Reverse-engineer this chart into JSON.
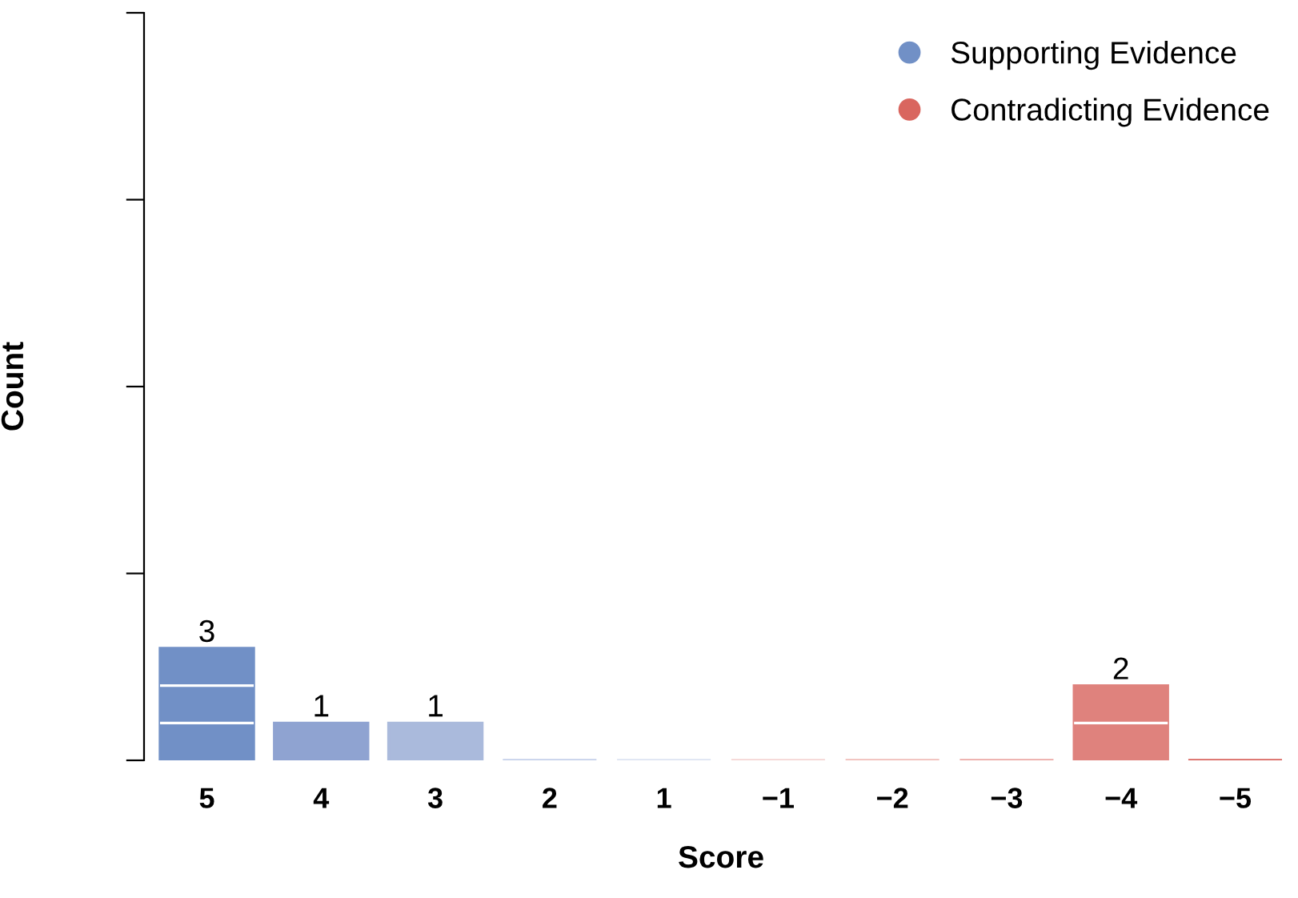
{
  "chart_data": {
    "type": "bar",
    "xlabel": "Score",
    "ylabel": "Count",
    "categories": [
      "5",
      "4",
      "3",
      "2",
      "1",
      "−1",
      "−2",
      "−3",
      "−4",
      "−5"
    ],
    "series": [
      {
        "name": "Supporting Evidence",
        "color": "#7190c6",
        "colors": [
          "#7190c6",
          "#8fa3d1",
          "#aabadc",
          "#c5d0ea",
          "#dde4f2",
          null,
          null,
          null,
          null,
          null
        ],
        "values": [
          3,
          1,
          1,
          0,
          0,
          null,
          null,
          null,
          null,
          null
        ],
        "value_labels": [
          "3",
          "1",
          "1",
          null,
          null,
          null,
          null,
          null,
          null,
          null
        ]
      },
      {
        "name": "Contradicting Evidence",
        "color": "#d9665f",
        "colors": [
          null,
          null,
          null,
          null,
          null,
          "#f5d5d3",
          "#f0bcb8",
          "#eba9a5",
          "#df827d",
          "#d9665f"
        ],
        "values": [
          null,
          null,
          null,
          null,
          null,
          0,
          0,
          0,
          2,
          0
        ],
        "value_labels": [
          null,
          null,
          null,
          null,
          null,
          null,
          null,
          null,
          "2",
          null
        ]
      }
    ],
    "ylim": [
      0,
      20
    ],
    "yticks": [
      {
        "value": 0,
        "label": null
      },
      {
        "value": 5,
        "label": null
      },
      {
        "value": 10,
        "label": null
      },
      {
        "value": 15,
        "label": null
      },
      {
        "value": 20,
        "label": null
      }
    ],
    "grid": false,
    "legend": "top right"
  }
}
